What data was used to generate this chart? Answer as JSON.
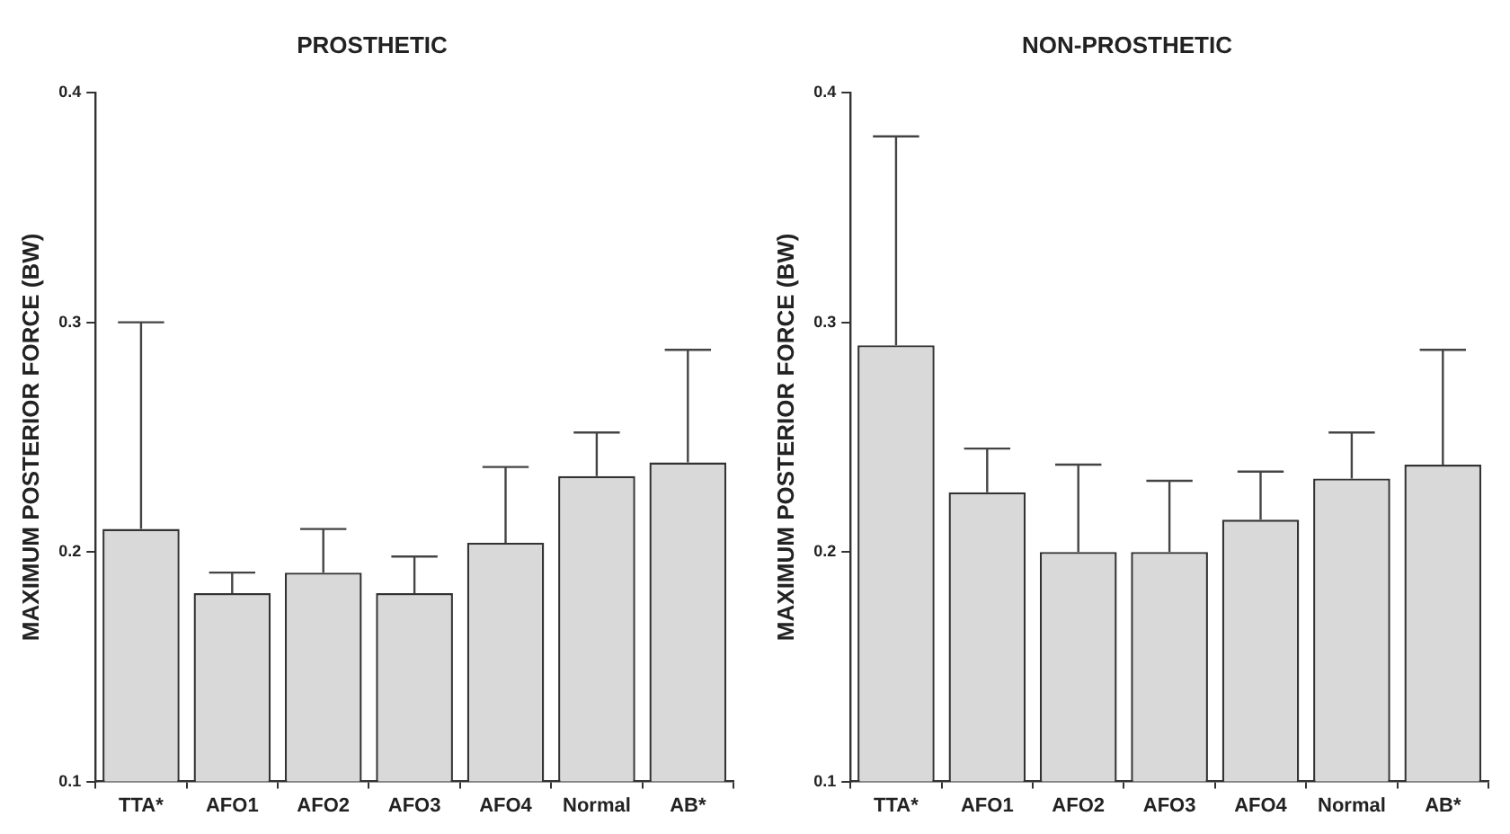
{
  "chart_data": [
    {
      "type": "bar",
      "title": "PROSTHETIC",
      "ylabel": "MAXIMUM POSTERIOR FORCE (BW)",
      "categories": [
        "TTA*",
        "AFO1",
        "AFO2",
        "AFO3",
        "AFO4",
        "Normal",
        "AB*"
      ],
      "color": "#d9d9d9",
      "values": [
        0.21,
        0.182,
        0.191,
        0.182,
        0.204,
        0.233,
        0.239
      ],
      "errors": [
        [
          0.21,
          0.3
        ],
        [
          0.182,
          0.191
        ],
        [
          0.191,
          0.21
        ],
        [
          0.182,
          0.198
        ],
        [
          0.204,
          0.237
        ],
        [
          0.233,
          0.252
        ],
        [
          0.239,
          0.288
        ]
      ],
      "ylim": [
        0.1,
        0.4
      ],
      "yticks": [
        0.1,
        0.2,
        0.3,
        0.4
      ],
      "grid": false,
      "legend": false
    },
    {
      "type": "bar",
      "title": "NON-PROSTHETIC",
      "ylabel": "MAXIMUM POSTERIOR FORCE (BW)",
      "categories": [
        "TTA*",
        "AFO1",
        "AFO2",
        "AFO3",
        "AFO4",
        "Normal",
        "AB*"
      ],
      "color": "#d9d9d9",
      "values": [
        0.29,
        0.226,
        0.2,
        0.2,
        0.214,
        0.232,
        0.238
      ],
      "errors": [
        [
          0.29,
          0.381
        ],
        [
          0.226,
          0.245
        ],
        [
          0.2,
          0.238
        ],
        [
          0.2,
          0.231
        ],
        [
          0.214,
          0.235
        ],
        [
          0.232,
          0.252
        ],
        [
          0.238,
          0.288
        ]
      ],
      "ylim": [
        0.1,
        0.4
      ],
      "yticks": [
        0.1,
        0.2,
        0.3,
        0.4
      ],
      "grid": false,
      "legend": false
    }
  ]
}
